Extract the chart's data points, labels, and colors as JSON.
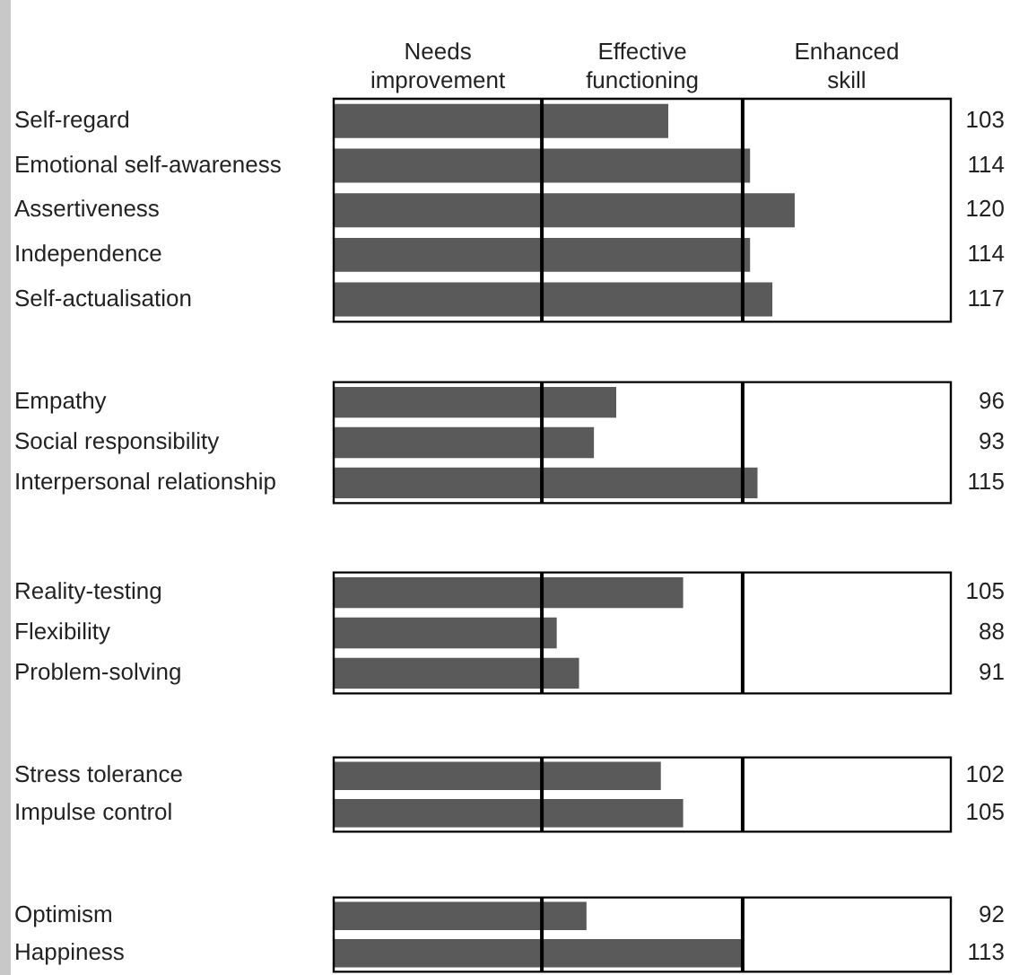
{
  "chart_data": [
    {
      "type": "bar",
      "orientation": "horizontal",
      "categories": [
        "Self-regard",
        "Emotional self-awareness",
        "Assertiveness",
        "Independence",
        "Self-actualisation"
      ],
      "values": [
        103,
        114,
        120,
        114,
        117
      ],
      "color": "#5a5a5a",
      "xlim": [
        58,
        141
      ],
      "data_labels": true,
      "tick_labels": "y",
      "ref_lines": [
        {
          "axis": "x",
          "value": 86
        },
        {
          "axis": "x",
          "value": 113
        }
      ],
      "annotations": [
        "Needs improvement",
        "Effective functioning",
        "Enhanced skill"
      ]
    },
    {
      "type": "bar",
      "orientation": "horizontal",
      "categories": [
        "Empathy",
        "Social responsibility",
        "Interpersonal relationship"
      ],
      "values": [
        96,
        93,
        115
      ],
      "color": "#5a5a5a",
      "xlim": [
        58,
        141
      ],
      "data_labels": true,
      "tick_labels": "y",
      "ref_lines": [
        {
          "axis": "x",
          "value": 86
        },
        {
          "axis": "x",
          "value": 113
        }
      ]
    },
    {
      "type": "bar",
      "orientation": "horizontal",
      "categories": [
        "Reality-testing",
        "Flexibility",
        "Problem-solving"
      ],
      "values": [
        105,
        88,
        91
      ],
      "color": "#5a5a5a",
      "xlim": [
        58,
        141
      ],
      "data_labels": true,
      "tick_labels": "y",
      "ref_lines": [
        {
          "axis": "x",
          "value": 86
        },
        {
          "axis": "x",
          "value": 113
        }
      ]
    },
    {
      "type": "bar",
      "orientation": "horizontal",
      "categories": [
        "Stress tolerance",
        "Impulse control"
      ],
      "values": [
        102,
        105
      ],
      "color": "#5a5a5a",
      "xlim": [
        58,
        141
      ],
      "data_labels": true,
      "tick_labels": "y",
      "ref_lines": [
        {
          "axis": "x",
          "value": 86
        },
        {
          "axis": "x",
          "value": 113
        }
      ]
    },
    {
      "type": "bar",
      "orientation": "horizontal",
      "categories": [
        "Optimism",
        "Happiness"
      ],
      "values": [
        92,
        113
      ],
      "color": "#5a5a5a",
      "xlim": [
        58,
        141
      ],
      "data_labels": true,
      "tick_labels": "y",
      "ref_lines": [
        {
          "axis": "x",
          "value": 86
        },
        {
          "axis": "x",
          "value": 113
        }
      ]
    }
  ]
}
